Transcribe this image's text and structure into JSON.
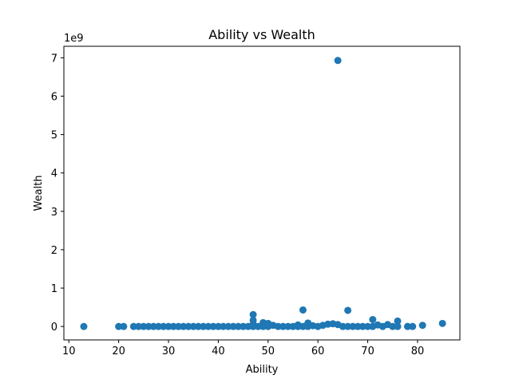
{
  "chart_data": {
    "type": "scatter",
    "title": "Ability vs Wealth",
    "xlabel": "Ability",
    "ylabel": "Wealth",
    "y_offset_label": "1e9",
    "xlim": [
      9,
      88.5
    ],
    "ylim": [
      -0.35,
      7.3
    ],
    "y_unit_multiplier": 1000000000,
    "xticks": [
      10,
      20,
      30,
      40,
      50,
      60,
      70,
      80
    ],
    "yticks": [
      0,
      1,
      2,
      3,
      4,
      5,
      6,
      7
    ],
    "grid": false,
    "marker_color": "#1f77b4",
    "points": [
      {
        "x": 13,
        "y": 0
      },
      {
        "x": 20,
        "y": 0
      },
      {
        "x": 21,
        "y": 0
      },
      {
        "x": 23,
        "y": 0
      },
      {
        "x": 24,
        "y": 0
      },
      {
        "x": 25,
        "y": 0
      },
      {
        "x": 26,
        "y": 0
      },
      {
        "x": 27,
        "y": 0
      },
      {
        "x": 28,
        "y": 0
      },
      {
        "x": 29,
        "y": 0
      },
      {
        "x": 30,
        "y": 0
      },
      {
        "x": 31,
        "y": 0
      },
      {
        "x": 32,
        "y": 0
      },
      {
        "x": 33,
        "y": 0
      },
      {
        "x": 34,
        "y": 0
      },
      {
        "x": 35,
        "y": 0
      },
      {
        "x": 36,
        "y": 0
      },
      {
        "x": 37,
        "y": 0
      },
      {
        "x": 38,
        "y": 0
      },
      {
        "x": 39,
        "y": 0
      },
      {
        "x": 40,
        "y": 0
      },
      {
        "x": 41,
        "y": 0
      },
      {
        "x": 42,
        "y": 0
      },
      {
        "x": 43,
        "y": 0
      },
      {
        "x": 44,
        "y": 0
      },
      {
        "x": 45,
        "y": 0
      },
      {
        "x": 46,
        "y": 0
      },
      {
        "x": 47,
        "y": 0
      },
      {
        "x": 47,
        "y": 0.06
      },
      {
        "x": 47,
        "y": 0.16
      },
      {
        "x": 47,
        "y": 0.31
      },
      {
        "x": 48,
        "y": 0
      },
      {
        "x": 49,
        "y": 0
      },
      {
        "x": 49,
        "y": 0.1
      },
      {
        "x": 50,
        "y": 0
      },
      {
        "x": 50,
        "y": 0.08
      },
      {
        "x": 51,
        "y": 0.03
      },
      {
        "x": 52,
        "y": 0
      },
      {
        "x": 53,
        "y": 0
      },
      {
        "x": 54,
        "y": 0
      },
      {
        "x": 55,
        "y": 0
      },
      {
        "x": 56,
        "y": 0
      },
      {
        "x": 56,
        "y": 0.04
      },
      {
        "x": 57,
        "y": 0
      },
      {
        "x": 57,
        "y": 0.43
      },
      {
        "x": 58,
        "y": 0
      },
      {
        "x": 58,
        "y": 0.09
      },
      {
        "x": 59,
        "y": 0.02
      },
      {
        "x": 60,
        "y": 0
      },
      {
        "x": 61,
        "y": 0.03
      },
      {
        "x": 62,
        "y": 0.06
      },
      {
        "x": 63,
        "y": 0.07
      },
      {
        "x": 64,
        "y": 0.05
      },
      {
        "x": 64,
        "y": 6.93
      },
      {
        "x": 65,
        "y": 0
      },
      {
        "x": 66,
        "y": 0
      },
      {
        "x": 66,
        "y": 0.42
      },
      {
        "x": 67,
        "y": 0
      },
      {
        "x": 68,
        "y": 0
      },
      {
        "x": 69,
        "y": 0
      },
      {
        "x": 70,
        "y": 0
      },
      {
        "x": 71,
        "y": 0
      },
      {
        "x": 71,
        "y": 0.18
      },
      {
        "x": 72,
        "y": 0.04
      },
      {
        "x": 73,
        "y": 0
      },
      {
        "x": 74,
        "y": 0.05
      },
      {
        "x": 75,
        "y": 0
      },
      {
        "x": 76,
        "y": 0
      },
      {
        "x": 76,
        "y": 0.14
      },
      {
        "x": 78,
        "y": 0
      },
      {
        "x": 79,
        "y": 0
      },
      {
        "x": 81,
        "y": 0.03
      },
      {
        "x": 85,
        "y": 0.08
      }
    ]
  }
}
